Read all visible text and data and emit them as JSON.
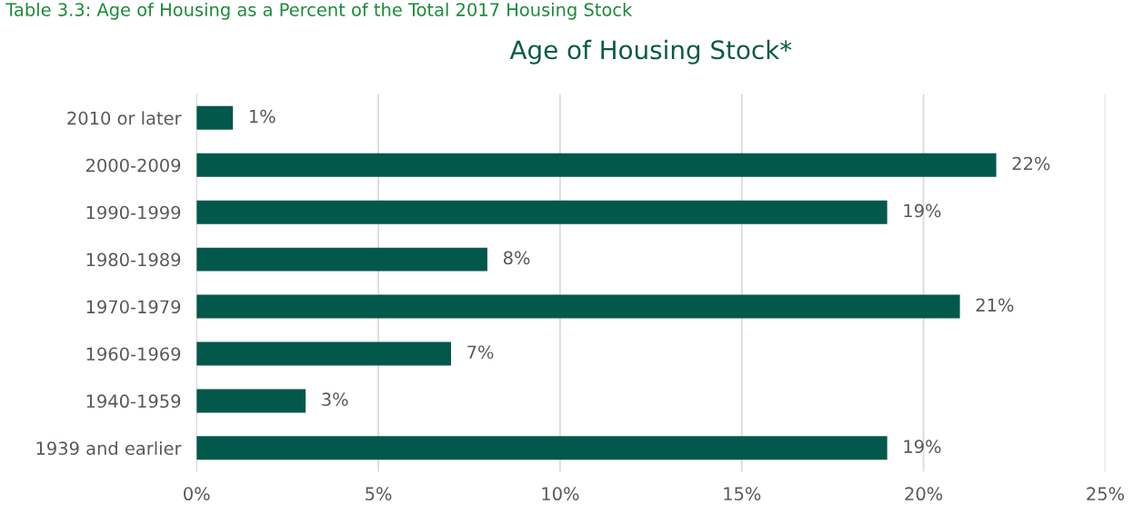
{
  "chart_data": {
    "type": "bar",
    "orientation": "horizontal",
    "title": "Age of Housing Stock*",
    "annotations": [
      "Table 3.3: Age of Housing as a Percent of the Total 2017 Housing Stock"
    ],
    "categories": [
      "2010 or later",
      "2000-2009",
      "1990-1999",
      "1980-1989",
      "1970-1979",
      "1960-1969",
      "1940-1959",
      "1939 and earlier"
    ],
    "values": [
      1,
      22,
      19,
      8,
      21,
      7,
      3,
      19
    ],
    "value_labels": [
      "1%",
      "22%",
      "19%",
      "8%",
      "21%",
      "7%",
      "3%",
      "19%"
    ],
    "color": "#02584a",
    "xlim": [
      0,
      25
    ],
    "xticks": [
      {
        "value": 0,
        "label": "0%"
      },
      {
        "value": 5,
        "label": "5%"
      },
      {
        "value": 10,
        "label": "10%"
      },
      {
        "value": 15,
        "label": "15%"
      },
      {
        "value": 20,
        "label": "20%"
      },
      {
        "value": 25,
        "label": "25%"
      }
    ],
    "grid": "x"
  }
}
